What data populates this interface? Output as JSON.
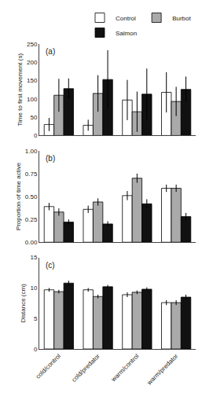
{
  "chart_data": [
    {
      "type": "bar",
      "title": "(a)",
      "ylabel": "Time to first movement (s)",
      "categories": [
        "cold/control",
        "cold/predator",
        "warm/control",
        "warm/predator"
      ],
      "series": [
        {
          "name": "Control",
          "color": "white",
          "values": [
            30,
            28,
            97,
            118
          ],
          "errors": [
            18,
            15,
            55,
            55
          ]
        },
        {
          "name": "Burbot",
          "color": "#aaaaaa",
          "values": [
            110,
            115,
            65,
            93
          ],
          "errors": [
            45,
            50,
            55,
            40
          ]
        },
        {
          "name": "Salmon",
          "color": "#111111",
          "values": [
            128,
            153,
            113,
            126
          ],
          "errors": [
            28,
            80,
            70,
            35
          ]
        }
      ],
      "ylim": [
        0,
        250
      ],
      "yticks": [
        0,
        50,
        100,
        150,
        200,
        250
      ],
      "grid": false,
      "legend": "top",
      "tick_labels": "y"
    },
    {
      "type": "bar",
      "title": "(b)",
      "ylabel": "Proportion of time active",
      "categories": [
        "cold/control",
        "cold/predator",
        "warm/control",
        "warm/predator"
      ],
      "series": [
        {
          "color": "white",
          "values": [
            0.39,
            0.36,
            0.51,
            0.59
          ],
          "errors": [
            0.04,
            0.04,
            0.05,
            0.04
          ]
        },
        {
          "color": "#aaaaaa",
          "values": [
            0.33,
            0.44,
            0.7,
            0.59
          ],
          "errors": [
            0.04,
            0.04,
            0.05,
            0.04
          ]
        },
        {
          "color": "#111111",
          "values": [
            0.22,
            0.2,
            0.42,
            0.28
          ],
          "errors": [
            0.03,
            0.03,
            0.05,
            0.04
          ]
        }
      ],
      "ylim": [
        0,
        1.0
      ],
      "yticks": [
        {
          "value": 0,
          "label": "0.00"
        },
        {
          "value": 0.25,
          "label": "0.25"
        },
        {
          "value": 0.5,
          "label": "0.50"
        },
        {
          "value": 0.75,
          "label": "0.75"
        },
        {
          "value": 1.0,
          "label": "1.00"
        }
      ],
      "grid": false,
      "tick_labels": "y"
    },
    {
      "type": "bar",
      "title": "(c)",
      "ylabel": "Distance (cm)",
      "categories": [
        "cold/control",
        "cold/predator",
        "warm/control",
        "warm/predator"
      ],
      "series": [
        {
          "color": "white",
          "values": [
            9.7,
            9.7,
            8.9,
            7.6
          ],
          "errors": [
            0.3,
            0.3,
            0.4,
            0.4
          ]
        },
        {
          "color": "#aaaaaa",
          "values": [
            9.4,
            8.6,
            9.3,
            7.6
          ],
          "errors": [
            0.3,
            0.3,
            0.3,
            0.4
          ]
        },
        {
          "color": "#111111",
          "values": [
            10.8,
            10.2,
            9.8,
            8.5
          ],
          "errors": [
            0.4,
            0.3,
            0.3,
            0.4
          ]
        }
      ],
      "ylim": [
        0,
        15
      ],
      "yticks": [
        0,
        5,
        10,
        15
      ],
      "grid": false
    }
  ]
}
